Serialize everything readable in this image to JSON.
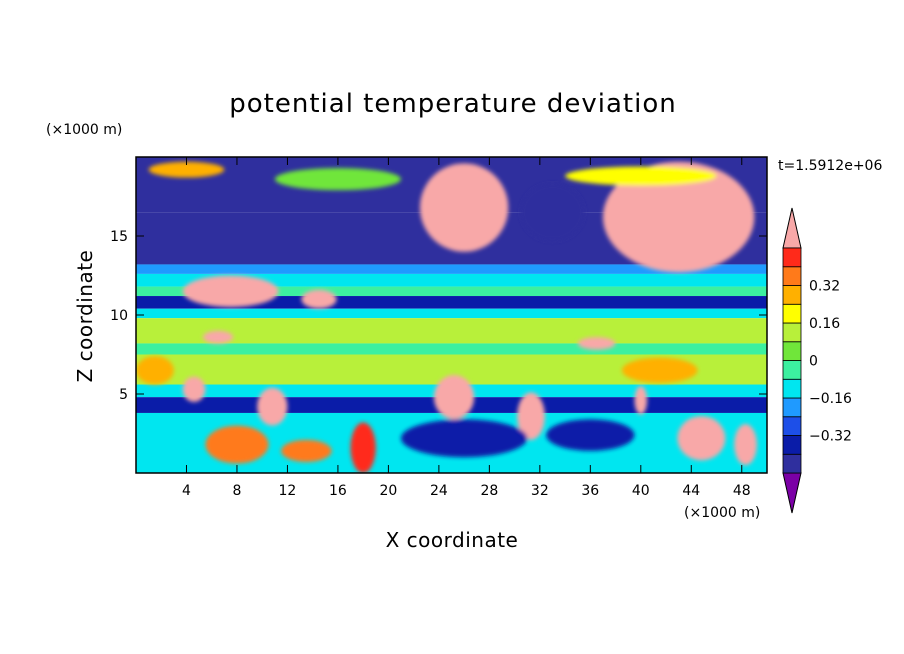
{
  "chart_data": {
    "type": "heatmap",
    "title": "potential temperature deviation",
    "xlabel": "X coordinate",
    "ylabel": "Z coordinate",
    "x_unit": "(×1000 m)",
    "y_unit": "(×1000 m)",
    "time_label": "t=1.5912e+06",
    "xlim": [
      0,
      50
    ],
    "ylim": [
      0,
      20
    ],
    "xticks": [
      4,
      8,
      12,
      16,
      20,
      24,
      28,
      32,
      36,
      40,
      44,
      48
    ],
    "yticks": [
      5,
      10,
      15
    ],
    "colorbar": {
      "levels": [
        -0.48,
        -0.4,
        -0.32,
        -0.24,
        -0.16,
        -0.08,
        0,
        0.08,
        0.16,
        0.24,
        0.32,
        0.4,
        0.48
      ],
      "colors": [
        "#7b00a6",
        "#2f2f9e",
        "#0a1ca8",
        "#1d4fe8",
        "#1f9aff",
        "#00e6f0",
        "#3cf0a0",
        "#70e63a",
        "#b8f03a",
        "#ffff00",
        "#ffb000",
        "#ff7a1a",
        "#ff2a1a",
        "#f8a8a8"
      ],
      "labels": [
        {
          "value": 0.32,
          "text": "0.32"
        },
        {
          "value": 0.16,
          "text": "0.16"
        },
        {
          "value": 0,
          "text": "0"
        },
        {
          "value": -0.16,
          "text": "−0.16"
        },
        {
          "value": -0.32,
          "text": "−0.32"
        }
      ]
    },
    "bands": [
      {
        "z": [
          16.5,
          20.0
        ],
        "level": -0.48
      },
      {
        "z": [
          13.2,
          16.5
        ],
        "level": -0.48
      },
      {
        "z": [
          12.6,
          13.2
        ],
        "level": -0.24
      },
      {
        "z": [
          11.8,
          12.6
        ],
        "level": -0.16
      },
      {
        "z": [
          11.2,
          11.8
        ],
        "level": -0.08
      },
      {
        "z": [
          10.4,
          11.2
        ],
        "level": -0.4
      },
      {
        "z": [
          9.8,
          10.4
        ],
        "level": -0.16
      },
      {
        "z": [
          8.2,
          9.8
        ],
        "level": 0.08
      },
      {
        "z": [
          7.5,
          8.2
        ],
        "level": -0.08
      },
      {
        "z": [
          5.6,
          7.5
        ],
        "level": 0.08
      },
      {
        "z": [
          4.8,
          5.6
        ],
        "level": -0.16
      },
      {
        "z": [
          3.8,
          4.8
        ],
        "level": -0.4
      },
      {
        "z": [
          0.0,
          3.8
        ],
        "level": -0.16
      }
    ],
    "blobs": [
      {
        "x": 26.0,
        "z": 16.8,
        "rx": 3.5,
        "rz": 2.8,
        "level": 0.48
      },
      {
        "x": 43.0,
        "z": 16.2,
        "rx": 6.0,
        "rz": 3.5,
        "level": 0.48
      },
      {
        "x": 7.5,
        "z": 11.5,
        "rx": 3.8,
        "rz": 1.0,
        "level": 0.48
      },
      {
        "x": 14.5,
        "z": 11.0,
        "rx": 1.4,
        "rz": 0.6,
        "level": 0.48
      },
      {
        "x": 6.5,
        "z": 8.6,
        "rx": 1.2,
        "rz": 0.4,
        "level": 0.48
      },
      {
        "x": 36.5,
        "z": 8.2,
        "rx": 1.5,
        "rz": 0.4,
        "level": 0.48
      },
      {
        "x": 25.2,
        "z": 4.8,
        "rx": 1.6,
        "rz": 1.4,
        "level": 0.48
      },
      {
        "x": 31.3,
        "z": 3.6,
        "rx": 1.1,
        "rz": 1.5,
        "level": 0.48
      },
      {
        "x": 10.8,
        "z": 4.2,
        "rx": 1.2,
        "rz": 1.2,
        "level": 0.48
      },
      {
        "x": 4.6,
        "z": 5.3,
        "rx": 0.9,
        "rz": 0.8,
        "level": 0.48
      },
      {
        "x": 44.8,
        "z": 2.2,
        "rx": 1.9,
        "rz": 1.4,
        "level": 0.48
      },
      {
        "x": 48.3,
        "z": 1.8,
        "rx": 0.9,
        "rz": 1.3,
        "level": 0.48
      },
      {
        "x": 40.0,
        "z": 4.6,
        "rx": 0.5,
        "rz": 0.9,
        "level": 0.48
      },
      {
        "x": 18.0,
        "z": 1.6,
        "rx": 1.0,
        "rz": 1.6,
        "level": 0.4
      },
      {
        "x": 8.0,
        "z": 1.8,
        "rx": 2.5,
        "rz": 1.2,
        "level": 0.32
      },
      {
        "x": 13.5,
        "z": 1.4,
        "rx": 2.0,
        "rz": 0.7,
        "level": 0.32
      },
      {
        "x": 26.0,
        "z": 2.2,
        "rx": 5.0,
        "rz": 1.2,
        "level": -0.4
      },
      {
        "x": 36.0,
        "z": 2.4,
        "rx": 3.5,
        "rz": 1.0,
        "level": -0.4
      },
      {
        "x": 33.0,
        "z": 16.5,
        "rx": 2.5,
        "rz": 1.8,
        "level": -0.48
      },
      {
        "x": 16.0,
        "z": 18.6,
        "rx": 5.0,
        "rz": 0.7,
        "level": 0.0
      },
      {
        "x": 40.0,
        "z": 18.8,
        "rx": 6.0,
        "rz": 0.6,
        "level": 0.16
      },
      {
        "x": 4.0,
        "z": 19.2,
        "rx": 3.0,
        "rz": 0.5,
        "level": 0.24
      },
      {
        "x": 1.5,
        "z": 6.5,
        "rx": 1.5,
        "rz": 0.9,
        "level": 0.24
      },
      {
        "x": 41.5,
        "z": 6.5,
        "rx": 3.0,
        "rz": 0.8,
        "level": 0.24
      }
    ]
  }
}
